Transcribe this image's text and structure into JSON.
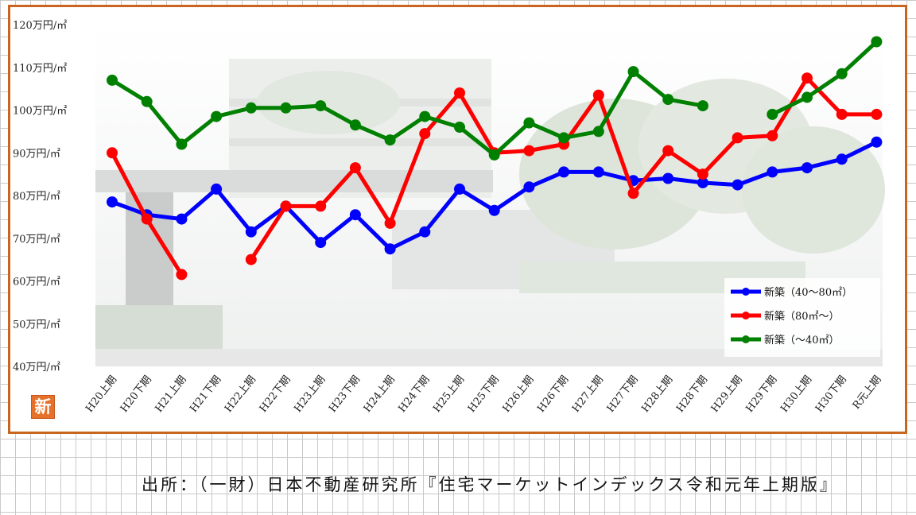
{
  "chart_data": {
    "type": "line",
    "categories": [
      "H20上期",
      "H20下期",
      "H21上期",
      "H21下期",
      "H22上期",
      "H22下期",
      "H23上期",
      "H23下期",
      "H24上期",
      "H24下期",
      "H25上期",
      "H25下期",
      "H26上期",
      "H26下期",
      "H27上期",
      "H27下期",
      "H28上期",
      "H28下期",
      "H29上期",
      "H29下期",
      "H30上期",
      "H30下期",
      "R元上期"
    ],
    "ylim": [
      40,
      120
    ],
    "yticks": [
      {
        "value": 40,
        "label": "40万円/㎡"
      },
      {
        "value": 50,
        "label": "50万円/㎡"
      },
      {
        "value": 60,
        "label": "60万円/㎡"
      },
      {
        "value": 70,
        "label": "70万円/㎡"
      },
      {
        "value": 80,
        "label": "80万円/㎡"
      },
      {
        "value": 90,
        "label": "90万円/㎡"
      },
      {
        "value": 100,
        "label": "100万円/㎡"
      },
      {
        "value": 110,
        "label": "110万円/㎡"
      },
      {
        "value": 120,
        "label": "120万円/㎡"
      }
    ],
    "legend_position": "bottom-right",
    "series": [
      {
        "name": "新築（40～80㎡）",
        "color": "#0000ff",
        "values": [
          78.5,
          75.5,
          74.5,
          81.5,
          71.5,
          77.5,
          69,
          75.5,
          67.5,
          71.5,
          81.5,
          76.5,
          82,
          85.5,
          85.5,
          83.5,
          84,
          83,
          82.5,
          85.5,
          86.5,
          88.5,
          92.5
        ]
      },
      {
        "name": "新築（80㎡～）",
        "color": "#ff0000",
        "values": [
          90,
          74.5,
          61.5,
          null,
          65,
          77.5,
          77.5,
          86.5,
          73.5,
          94.5,
          104,
          90,
          90.5,
          92,
          103.5,
          80.5,
          90.5,
          85,
          93.5,
          94,
          107.5,
          99,
          99
        ]
      },
      {
        "name": "新築（～40㎡）",
        "color": "#008000",
        "values": [
          107,
          102,
          92,
          98.5,
          100.5,
          100.5,
          101,
          96.5,
          93,
          98.5,
          96,
          89.5,
          97,
          93.5,
          95,
          109,
          102.5,
          101,
          null,
          99,
          103,
          108.5,
          116
        ]
      }
    ]
  },
  "badge": "新",
  "source": "出所：（一財）日本不動産研究所『住宅マーケットインデックス令和元年上期版』"
}
